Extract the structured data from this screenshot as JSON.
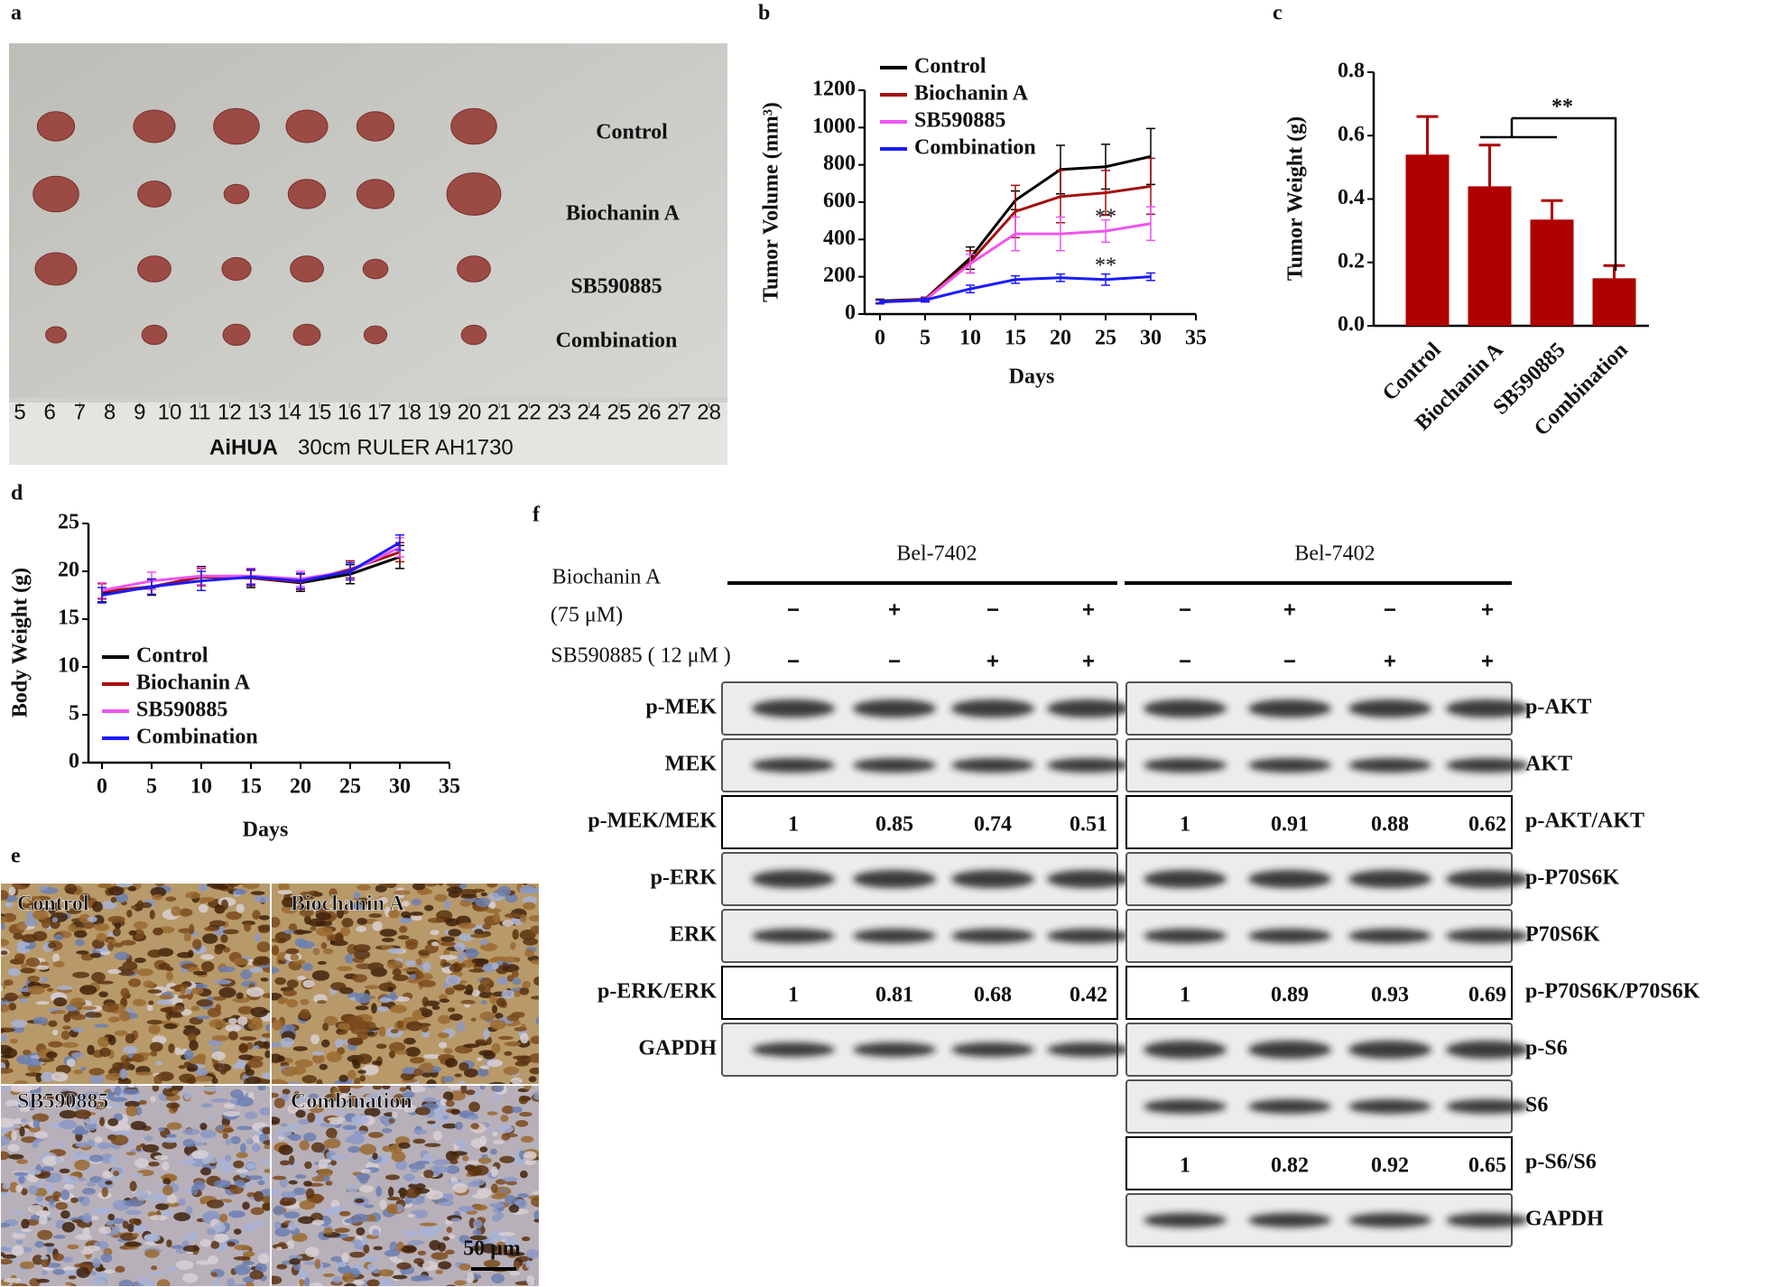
{
  "panel_a": {
    "label": "a",
    "groups": [
      "Control",
      "Biochanin A",
      "SB590885",
      "Combination"
    ],
    "ruler_ticks": [
      5,
      6,
      7,
      8,
      9,
      10,
      11,
      12,
      13,
      14,
      15,
      16,
      17,
      18,
      19,
      20,
      21,
      22,
      23,
      24,
      25,
      26,
      27,
      28
    ],
    "ruler_brand": "AiHUA",
    "ruler_model": "30cm RULER   AH1730"
  },
  "chart_data": [
    {
      "label": "b",
      "type": "line",
      "ylabel": "Tumor Volume (mm³)",
      "xlabel": "Days",
      "x": [
        0,
        5,
        10,
        15,
        20,
        25,
        30
      ],
      "xlim": [
        0,
        35
      ],
      "xticks": [
        0,
        5,
        10,
        15,
        20,
        25,
        30,
        35
      ],
      "ylim": [
        0,
        1200
      ],
      "yticks": [
        0,
        200,
        400,
        600,
        800,
        1000,
        1200
      ],
      "legend": "upper left",
      "series": [
        {
          "name": "Control",
          "color": "#000000",
          "values": [
            70,
            80,
            300,
            610,
            775,
            790,
            845
          ],
          "errors": [
            10,
            10,
            60,
            50,
            130,
            120,
            150
          ]
        },
        {
          "name": "Biochanin A",
          "color": "#a50f0f",
          "values": [
            65,
            80,
            280,
            550,
            630,
            650,
            685
          ],
          "errors": [
            10,
            10,
            60,
            140,
            140,
            120,
            150
          ]
        },
        {
          "name": "SB590885",
          "color": "#ee55ee",
          "values": [
            65,
            75,
            270,
            430,
            430,
            445,
            485
          ],
          "errors": [
            10,
            10,
            50,
            90,
            90,
            60,
            90
          ]
        },
        {
          "name": "Combination",
          "color": "#1a1aff",
          "values": [
            65,
            75,
            135,
            185,
            195,
            185,
            200
          ],
          "errors": [
            10,
            10,
            20,
            20,
            20,
            30,
            20
          ]
        }
      ],
      "annotations": [
        "**",
        "**"
      ]
    },
    {
      "label": "c",
      "type": "bar",
      "ylabel": "Tumor  Weight (g)",
      "color": "#b00000",
      "categories": [
        "Control",
        "Biochanin A",
        "SB590885",
        "Combination"
      ],
      "values": [
        0.54,
        0.44,
        0.335,
        0.15
      ],
      "errors": [
        0.12,
        0.13,
        0.06,
        0.04
      ],
      "ylim": [
        0,
        0.8
      ],
      "yticks": [
        {
          "value": 0,
          "label": "0.0"
        },
        0.2,
        0.4,
        0.6,
        0.8
      ],
      "annotations": [
        "**"
      ]
    },
    {
      "label": "d",
      "type": "line",
      "ylabel": "Body Weight (g)",
      "xlabel": "Days",
      "x": [
        0,
        5,
        10,
        15,
        20,
        25,
        30
      ],
      "xlim": [
        0,
        35
      ],
      "xticks": [
        0,
        5,
        10,
        15,
        20,
        25,
        30,
        35
      ],
      "ylim": [
        0,
        25
      ],
      "yticks": [
        0,
        5,
        10,
        15,
        20,
        25
      ],
      "legend": "lower left",
      "series": [
        {
          "name": "Control",
          "color": "#000000",
          "values": [
            17.8,
            18.3,
            19.5,
            19.3,
            18.8,
            19.7,
            21.5
          ],
          "errors": [
            1,
            0.8,
            1,
            1,
            0.9,
            1,
            1.2
          ]
        },
        {
          "name": "Biochanin A",
          "color": "#a50f0f",
          "values": [
            17.9,
            18.4,
            19.4,
            19.3,
            18.9,
            20.2,
            22
          ],
          "errors": [
            0.8,
            0.8,
            0.9,
            0.8,
            0.8,
            0.9,
            1
          ]
        },
        {
          "name": "SB590885",
          "color": "#ee55ee",
          "values": [
            18,
            19,
            19.5,
            19.5,
            19.2,
            20,
            22.5
          ],
          "errors": [
            0.8,
            0.9,
            0.9,
            0.8,
            0.8,
            0.9,
            1
          ]
        },
        {
          "name": "Combination",
          "color": "#1a1aff",
          "values": [
            17.5,
            18.4,
            19,
            19.4,
            19,
            20,
            23
          ],
          "errors": [
            0.8,
            0.8,
            1,
            0.8,
            0.8,
            0.9,
            0.8
          ]
        }
      ]
    }
  ],
  "panel_e": {
    "label": "e",
    "quadrants": [
      "Control",
      "Biochanin A",
      "SB590885",
      "Combination"
    ],
    "scale_bar": "50 μm"
  },
  "panel_f": {
    "label": "f",
    "treatments": [
      {
        "name": "Biochanin A",
        "dose": "(75 μM)"
      },
      {
        "name": "SB590885 ( 12 μM )"
      }
    ],
    "blots": [
      {
        "cell_line": "Bel-7402",
        "signs": [
          [
            "−",
            "+",
            "−",
            "+"
          ],
          [
            "−",
            "−",
            "+",
            "+"
          ]
        ],
        "rows": [
          {
            "label": "p-MEK"
          },
          {
            "label": "MEK"
          },
          {
            "label": "p-MEK/MEK",
            "values": [
              1,
              0.85,
              0.74,
              0.51
            ]
          },
          {
            "label": "p-ERK"
          },
          {
            "label": "ERK"
          },
          {
            "label": "p-ERK/ERK",
            "values": [
              1,
              0.81,
              0.68,
              0.42
            ]
          },
          {
            "label": "GAPDH"
          }
        ]
      },
      {
        "cell_line": "Bel-7402",
        "signs": [
          [
            "−",
            "+",
            "−",
            "+"
          ],
          [
            "−",
            "−",
            "+",
            "+"
          ]
        ],
        "rows": [
          {
            "label": "p-AKT"
          },
          {
            "label": "AKT"
          },
          {
            "label": "p-AKT/AKT",
            "values": [
              1,
              0.91,
              0.88,
              0.62
            ]
          },
          {
            "label": "p-P70S6K"
          },
          {
            "label": "P70S6K"
          },
          {
            "label": "p-P70S6K/P70S6K",
            "values": [
              1,
              0.89,
              0.93,
              0.69
            ]
          },
          {
            "label": "p-S6"
          },
          {
            "label": "S6"
          },
          {
            "label": "p-S6/S6",
            "values": [
              1,
              0.82,
              0.92,
              0.65
            ]
          },
          {
            "label": "GAPDH"
          }
        ]
      }
    ]
  }
}
